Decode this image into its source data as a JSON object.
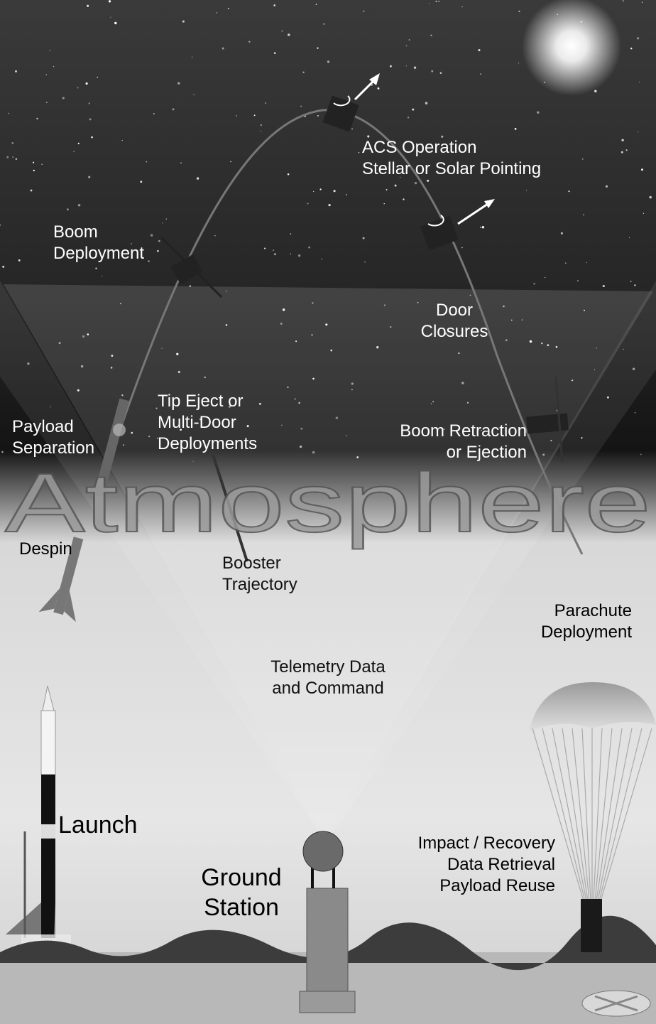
{
  "labels": [
    {
      "lines": [
        "ACS Operation",
        "Stellar or Solar Pointing"
      ]
    },
    {
      "lines": [
        "Boom",
        "Deployment"
      ]
    },
    {
      "lines": [
        "Door",
        "Closures"
      ]
    },
    {
      "lines": [
        "Tip Eject or",
        "Multi-Door",
        "Deployments"
      ]
    },
    {
      "lines": [
        "Payload",
        "Separation"
      ]
    },
    {
      "lines": [
        "Boom Retraction",
        "or Ejection"
      ]
    },
    {
      "lines": [
        "Atmosphere"
      ]
    },
    {
      "lines": [
        "Despin"
      ]
    },
    {
      "lines": [
        "Booster",
        "Trajectory"
      ]
    },
    {
      "lines": [
        "Parachute",
        "Deployment"
      ]
    },
    {
      "lines": [
        "Telemetry Data",
        "and Command"
      ]
    },
    {
      "lines": [
        "Launch"
      ]
    },
    {
      "lines": [
        "Ground",
        "Station"
      ]
    },
    {
      "lines": [
        "Impact / Recovery",
        "Data Retrieval",
        "Payload Reuse"
      ]
    }
  ]
}
